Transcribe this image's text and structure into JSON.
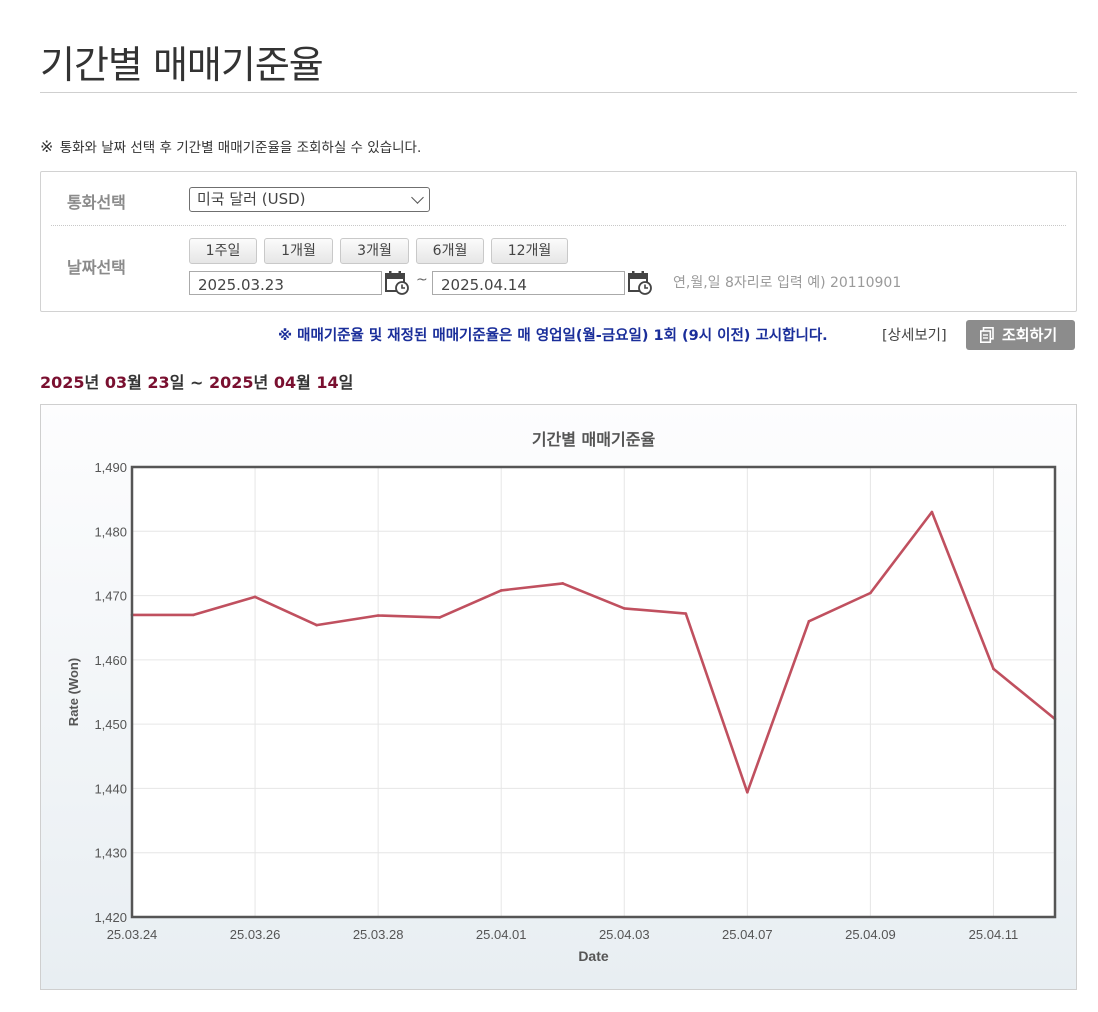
{
  "page": {
    "title": "기간별 매매기준율",
    "notice_mark": "※",
    "notice": "통화와 날짜 선택 후 기간별 매매기준율을 조회하실 수 있습니다."
  },
  "form": {
    "currency_label": "통화선택",
    "currency_value": "미국 달러 (USD)",
    "date_label": "날짜선택",
    "period_buttons": [
      "1주일",
      "1개월",
      "3개월",
      "6개월",
      "12개월"
    ],
    "start_date": "2025.03.23",
    "end_date": "2025.04.14",
    "range_separator": "~",
    "date_hint": "연,월,일 8자리로 입력 예) 20110901"
  },
  "announcement": {
    "text": "※ 매매기준율 및 재정된 매매기준율은 매 영업일(월-금요일) 1회 (9시 이전) 고시합니다.",
    "detail_link": "[상세보기]",
    "search_button": "조회하기"
  },
  "period_display": {
    "start_year": "2025",
    "start_month": "03",
    "start_day": "23",
    "end_year": "2025",
    "end_month": "04",
    "end_day": "14",
    "year_unit": "년",
    "month_unit": "월",
    "day_unit": "일",
    "separator": "~"
  },
  "colors": {
    "line": "#c0505f",
    "announce": "#1a2e9a",
    "period_number": "#7a1030",
    "search_button_bg": "#8c8c8c"
  },
  "icons": {
    "calendar": "calendar-icon",
    "search": "document-icon",
    "select": "chevron-down-icon"
  },
  "chart_data": {
    "type": "line",
    "title": "기간별 매매기준율",
    "xlabel": "Date",
    "ylabel": "Rate (Won)",
    "ylim": [
      1420,
      1490
    ],
    "yticks": [
      1420,
      1430,
      1440,
      1450,
      1460,
      1470,
      1480,
      1490
    ],
    "ytick_labels": [
      "1,420",
      "1,430",
      "1,440",
      "1,450",
      "1,460",
      "1,470",
      "1,480",
      "1,490"
    ],
    "xtick_labels": [
      "25.03.24",
      "25.03.26",
      "25.03.28",
      "25.04.01",
      "25.04.03",
      "25.04.07",
      "25.04.09",
      "25.04.11"
    ],
    "xtick_index": [
      0,
      2,
      4,
      6,
      8,
      10,
      12,
      14
    ],
    "grid": true,
    "series": [
      {
        "x": [
          "25.03.24",
          "25.03.25",
          "25.03.26",
          "25.03.27",
          "25.03.28",
          "25.03.31",
          "25.04.01",
          "25.04.02",
          "25.04.03",
          "25.04.04",
          "25.04.07",
          "25.04.08",
          "25.04.09",
          "25.04.10",
          "25.04.11",
          "25.04.14"
        ],
        "values": [
          1467.0,
          1467.0,
          1469.8,
          1465.4,
          1466.9,
          1466.6,
          1470.8,
          1471.9,
          1468.0,
          1467.2,
          1439.4,
          1466.0,
          1470.4,
          1483.0,
          1458.6,
          1450.8
        ]
      }
    ]
  }
}
